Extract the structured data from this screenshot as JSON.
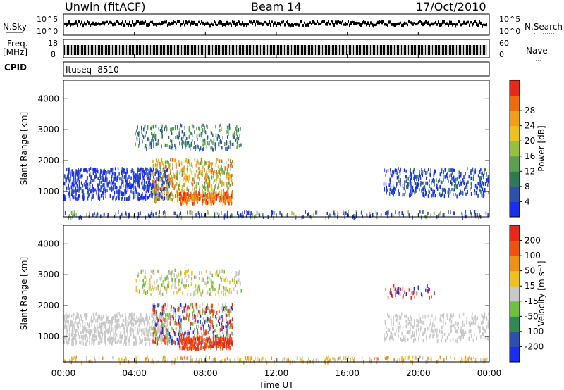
{
  "header": {
    "station": "Unwin (fitACF)",
    "beam": "Beam 14",
    "date": "17/Oct/2010"
  },
  "top_panels": {
    "nsky_label": "N.Sky",
    "nsky_ticks": [
      "10^5",
      "10^0"
    ],
    "nsearch_label": "N.Search",
    "nsearch_ticks": [
      "10^5",
      "10^0"
    ],
    "freq_label": "Freq.",
    "freq_unit": "[MHz]",
    "freq_ticks": [
      "18",
      "8"
    ],
    "nave_label": "Nave",
    "nave_ticks": [
      "60",
      "0"
    ],
    "cpid_label": "CPID",
    "cpid_value": "Ituseq -8510"
  },
  "chart_data": [
    {
      "type": "heatmap",
      "title": "",
      "ylabel": "Slant Range [km]",
      "xlabel": "",
      "colorbar_label": "Power [dB]",
      "colorbar_ticks": [
        "4",
        "8",
        "12",
        "16",
        "20",
        "24",
        "28"
      ],
      "colorbar_colors": [
        "#1a2ef0",
        "#2f4fb0",
        "#2f7a55",
        "#5aa050",
        "#96c040",
        "#f0c020",
        "#f0a018",
        "#f06a10",
        "#e82818"
      ],
      "y_ticks": [
        1000,
        2000,
        3000,
        4000
      ],
      "ylim": [
        180,
        4600
      ],
      "xlim": [
        0,
        24
      ]
    },
    {
      "type": "heatmap",
      "title": "",
      "ylabel": "Slant Range [km]",
      "xlabel": "Time UT",
      "colorbar_label": "Velocity [m s⁻¹]",
      "colorbar_ticks": [
        "200",
        "100",
        "50",
        "15",
        "-15",
        "-50",
        "-100",
        "-200"
      ],
      "colorbar_colors": [
        "#1a2ef0",
        "#2f4fb0",
        "#2f8a55",
        "#70c040",
        "#c8c8c8",
        "#f0c020",
        "#f09018",
        "#f05010",
        "#e82818"
      ],
      "y_ticks": [
        1000,
        2000,
        3000,
        4000
      ],
      "ylim": [
        180,
        4600
      ],
      "xlim": [
        0,
        24
      ],
      "x_ticks": [
        "00:00",
        "04:00",
        "08:00",
        "12:00",
        "16:00",
        "20:00",
        "00:00"
      ]
    }
  ]
}
